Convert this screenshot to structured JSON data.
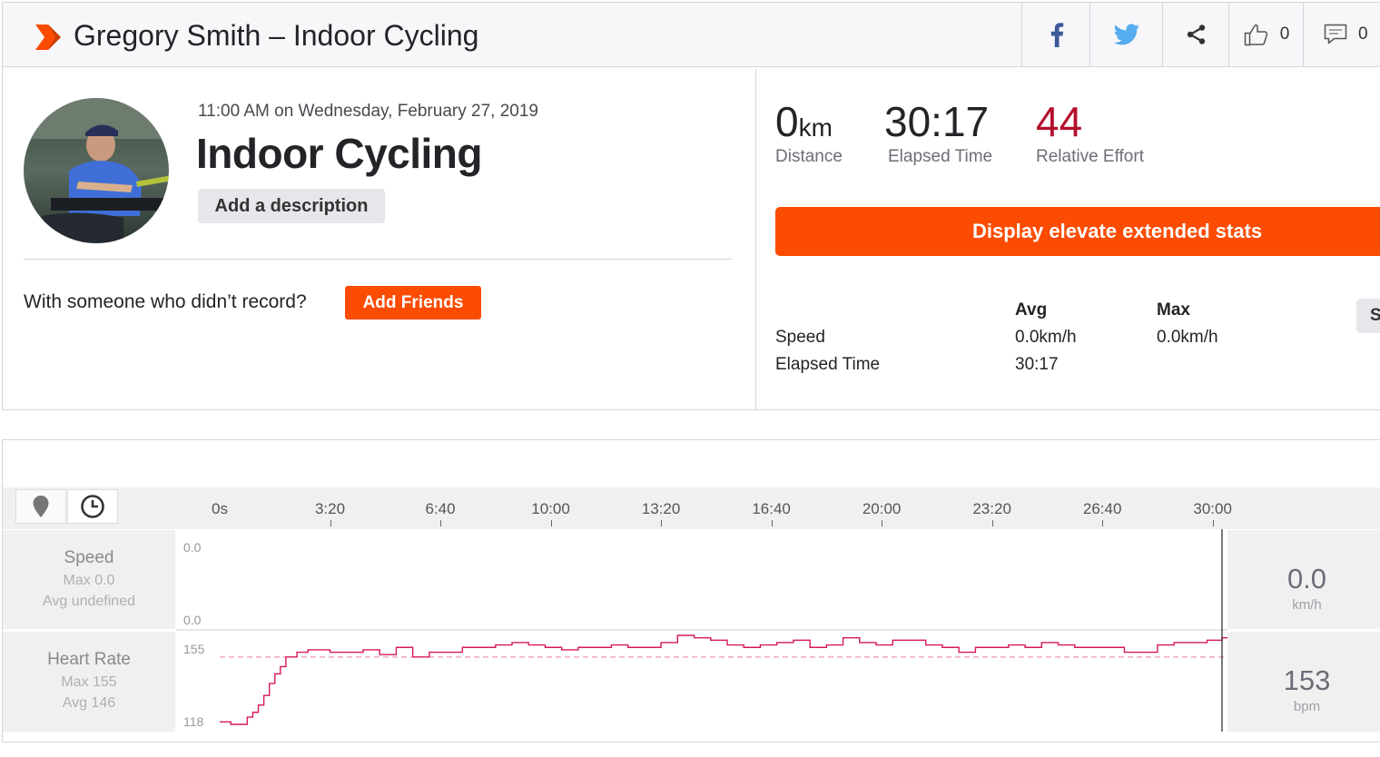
{
  "header": {
    "title": "Gregory Smith – Indoor Cycling",
    "kudos_count": "0",
    "comments_count": "0",
    "icons": [
      "facebook-icon",
      "twitter-icon",
      "share-icon",
      "thumbs-up-icon",
      "comment-icon"
    ],
    "brand_color": "#fc4c02"
  },
  "activity": {
    "datetime": "11:00 AM on Wednesday, February 27, 2019",
    "name": "Indoor Cycling",
    "add_description": "Add a description",
    "with_someone": "With someone who didn’t record?",
    "add_friends": "Add Friends"
  },
  "stats": {
    "distance_value": "0",
    "distance_unit": "km",
    "distance_label": "Distance",
    "elapsed_value": "30:17",
    "elapsed_label": "Elapsed Time",
    "effort_value": "44",
    "effort_label": "Relative Effort",
    "effort_color": "#b3102c",
    "elevate_button": "Display elevate extended stats",
    "table": {
      "col_avg": "Avg",
      "col_max": "Max",
      "rows": [
        {
          "label": "Speed",
          "avg": "0.0km/h",
          "max": "0.0km/h"
        },
        {
          "label": "Elapsed Time",
          "avg": "30:17",
          "max": ""
        }
      ]
    },
    "side_tab": "S"
  },
  "chart": {
    "tools": [
      "map-pin-icon",
      "clock-icon"
    ],
    "x_ticks": [
      "0s",
      "3:20",
      "6:40",
      "10:00",
      "13:20",
      "16:40",
      "20:00",
      "23:20",
      "26:40",
      "30:00"
    ],
    "speed": {
      "name": "Speed",
      "max_text": "Max 0.0",
      "avg_text": "Avg undefined",
      "ytop": "0.0",
      "ybottom": "0.0",
      "value": "0.0",
      "unit": "km/h"
    },
    "hr": {
      "name": "Heart Rate",
      "max_text": "Max 155",
      "avg_text": "Avg 146",
      "ytop": "155",
      "ybottom": "118",
      "value": "153",
      "unit": "bpm",
      "line_color": "#d6185c"
    }
  },
  "chart_data": {
    "type": "line",
    "xlabel": "",
    "ylabel": "",
    "x_range_seconds": [
      0,
      1817
    ],
    "series": [
      {
        "name": "Heart Rate",
        "x_seconds": [
          0,
          20,
          40,
          50,
          60,
          70,
          80,
          90,
          100,
          110,
          120,
          140,
          160,
          180,
          200,
          230,
          260,
          290,
          320,
          350,
          380,
          410,
          440,
          470,
          500,
          530,
          560,
          590,
          620,
          650,
          680,
          710,
          740,
          770,
          800,
          830,
          860,
          890,
          920,
          950,
          980,
          1010,
          1040,
          1070,
          1100,
          1130,
          1160,
          1190,
          1220,
          1250,
          1280,
          1310,
          1340,
          1370,
          1400,
          1430,
          1460,
          1490,
          1520,
          1550,
          1580,
          1610,
          1640,
          1670,
          1700,
          1730,
          1760,
          1790,
          1817
        ],
        "values": [
          119,
          118,
          118,
          121,
          123,
          126,
          130,
          135,
          139,
          142,
          146,
          148,
          149,
          149,
          148,
          148,
          149,
          147,
          150,
          146,
          148,
          148,
          150,
          150,
          151,
          152,
          151,
          150,
          149,
          150,
          150,
          151,
          150,
          150,
          152,
          155,
          154,
          153,
          151,
          150,
          151,
          152,
          153,
          150,
          151,
          154,
          152,
          151,
          153,
          153,
          151,
          150,
          148,
          150,
          150,
          151,
          150,
          152,
          151,
          150,
          150,
          150,
          148,
          148,
          151,
          152,
          152,
          153,
          154
        ]
      },
      {
        "name": "Speed",
        "x_seconds": [
          0,
          1817
        ],
        "values": [
          0.0,
          0.0
        ]
      }
    ],
    "hr_avg_line": 146,
    "ylim_hr": [
      118,
      155
    ],
    "ylim_speed": [
      0.0,
      0.0
    ]
  }
}
